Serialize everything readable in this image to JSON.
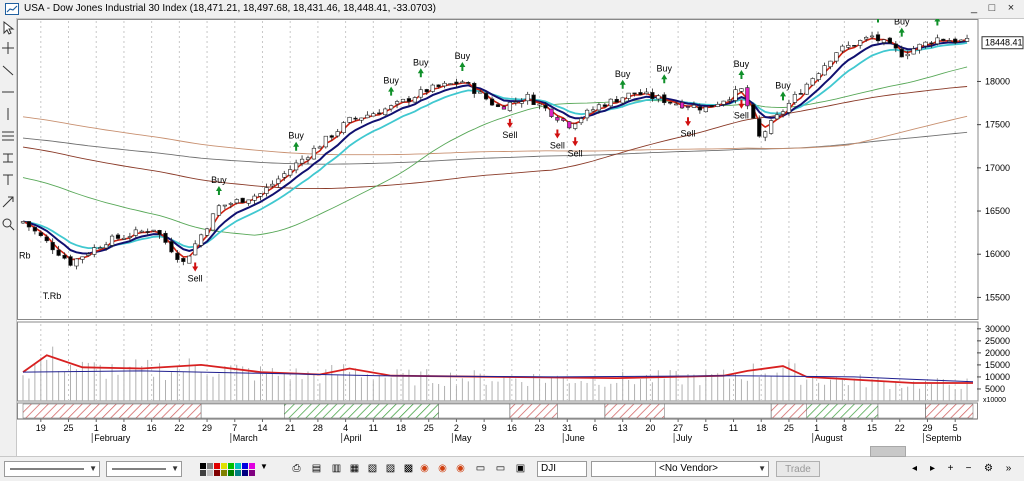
{
  "window": {
    "title": "USA - Dow Jones Industrial 30 Index (18,471.21, 18,497.68, 18,431.46, 18,448.41, -33.0703)",
    "buttons": {
      "minimize": "_",
      "maximize": "□",
      "close": "×"
    }
  },
  "left_toolbar": {
    "icons": [
      "cursor-icon",
      "crosshair-icon",
      "trendline-icon",
      "horizontal-line-icon",
      "vertical-line-icon",
      "fibonacci-icon",
      "pitchfork-icon",
      "text-icon",
      "arrow-icon",
      "zoom-icon"
    ]
  },
  "colors": {
    "up_candle": "#ffffff",
    "down_candle": "#000000",
    "sell_candle": "#e020c0",
    "ema_fast": "#d02010",
    "ema_mid": "#101070",
    "ema_slow": "#40c8d0",
    "sma_50": "#58a858",
    "sma_100": "#8a3a28",
    "sma_200": "#c89070",
    "sma_300": "#707070",
    "buy_arrow": "#10902a",
    "sell_arrow": "#d01010",
    "volume_avg": "#d82020",
    "volume_ma": "#202090"
  },
  "chart_data": {
    "type": "candlestick",
    "title": "Dow Jones Industrial 30 Index",
    "last_price": "18448.41",
    "y_ticks": [
      "18000",
      "17500",
      "17000",
      "16500",
      "16000",
      "15500"
    ],
    "ylim": [
      15250,
      18700
    ],
    "x_day_ticks": [
      "19",
      "25",
      "1",
      "8",
      "16",
      "22",
      "29",
      "7",
      "14",
      "21",
      "28",
      "4",
      "11",
      "18",
      "25",
      "2",
      "9",
      "16",
      "23",
      "31",
      "6",
      "13",
      "20",
      "27",
      "5",
      "11",
      "18",
      "25",
      "1",
      "8",
      "15",
      "22",
      "29",
      "5"
    ],
    "x_month_labels": [
      "February",
      "March",
      "April",
      "May",
      "June",
      "July",
      "August",
      "Septemb"
    ],
    "trading_days": 160,
    "price_path": [
      [
        0,
        16380
      ],
      [
        8,
        15900
      ],
      [
        14,
        16150
      ],
      [
        22,
        16300
      ],
      [
        27,
        15900
      ],
      [
        33,
        16550
      ],
      [
        40,
        16700
      ],
      [
        47,
        17100
      ],
      [
        55,
        17550
      ],
      [
        62,
        17700
      ],
      [
        68,
        17900
      ],
      [
        74,
        18000
      ],
      [
        80,
        17700
      ],
      [
        85,
        17820
      ],
      [
        92,
        17500
      ],
      [
        97,
        17720
      ],
      [
        103,
        17870
      ],
      [
        110,
        17750
      ],
      [
        115,
        17690
      ],
      [
        121,
        17900
      ],
      [
        124,
        17350
      ],
      [
        130,
        17820
      ],
      [
        137,
        18350
      ],
      [
        143,
        18520
      ],
      [
        148,
        18320
      ],
      [
        154,
        18500
      ],
      [
        160,
        18448
      ]
    ],
    "signals": [
      {
        "label": "Buy",
        "day": 33,
        "type": "buy"
      },
      {
        "label": "Buy",
        "day": 46,
        "type": "buy"
      },
      {
        "label": "Buy",
        "day": 62,
        "type": "buy"
      },
      {
        "label": "Buy",
        "day": 67,
        "type": "buy"
      },
      {
        "label": "Buy",
        "day": 74,
        "type": "buy"
      },
      {
        "label": "Buy",
        "day": 101,
        "type": "buy"
      },
      {
        "label": "Buy",
        "day": 108,
        "type": "buy"
      },
      {
        "label": "Buy",
        "day": 121,
        "type": "buy"
      },
      {
        "label": "Buy",
        "day": 128,
        "type": "buy"
      },
      {
        "label": "Buy",
        "day": 144,
        "type": "buy"
      },
      {
        "label": "Buy",
        "day": 148,
        "type": "buy"
      },
      {
        "label": "Buy",
        "day": 154,
        "type": "buy"
      },
      {
        "label": "Sell",
        "day": 29,
        "type": "sell"
      },
      {
        "label": "Sell",
        "day": 82,
        "type": "sell"
      },
      {
        "label": "Sell",
        "day": 90,
        "type": "sell"
      },
      {
        "label": "Sell",
        "day": 93,
        "type": "sell"
      },
      {
        "label": "Sell",
        "day": 112,
        "type": "sell"
      },
      {
        "label": "Sell",
        "day": 121,
        "type": "sell"
      }
    ],
    "markers": [
      "Rb",
      "T.Rb"
    ],
    "volume": {
      "y_ticks": [
        "30000",
        "25000",
        "20000",
        "15000",
        "10000",
        "5000"
      ],
      "ylim": [
        0,
        32000
      ],
      "unit_label": "x10000",
      "avg_path": [
        [
          0,
          12000
        ],
        [
          4,
          19000
        ],
        [
          10,
          14000
        ],
        [
          20,
          13500
        ],
        [
          30,
          15000
        ],
        [
          40,
          12000
        ],
        [
          50,
          11000
        ],
        [
          55,
          13500
        ],
        [
          62,
          10500
        ],
        [
          80,
          10000
        ],
        [
          100,
          9500
        ],
        [
          118,
          10500
        ],
        [
          122,
          12500
        ],
        [
          128,
          14500
        ],
        [
          132,
          10000
        ],
        [
          150,
          7500
        ],
        [
          160,
          7500
        ]
      ],
      "ma_path": [
        [
          0,
          12000
        ],
        [
          20,
          12500
        ],
        [
          40,
          11500
        ],
        [
          60,
          10500
        ],
        [
          90,
          10000
        ],
        [
          120,
          10500
        ],
        [
          140,
          10000
        ],
        [
          160,
          8000
        ]
      ]
    }
  },
  "bottom_toolbar": {
    "symbol": "DJI",
    "vendor": "<No Vendor>",
    "trade_label": "Trade"
  }
}
